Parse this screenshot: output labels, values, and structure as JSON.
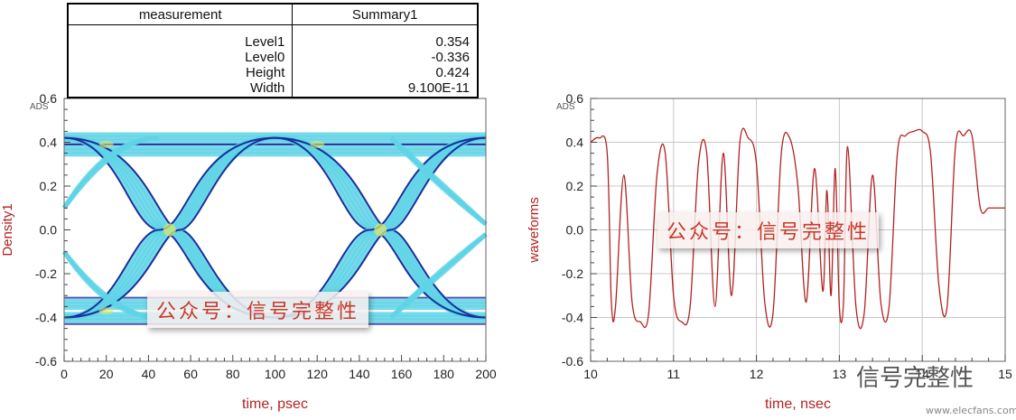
{
  "measurement_table": {
    "header": [
      "measurement",
      "Summary1"
    ],
    "rows": [
      {
        "name": "Level1",
        "value": "0.354"
      },
      {
        "name": "Level0",
        "value": "-0.336"
      },
      {
        "name": "Height",
        "value": "0.424"
      },
      {
        "name": "Width",
        "value": "9.100E-11"
      }
    ]
  },
  "watermark_text": "公众号：信号完整性",
  "site_watermark": {
    "text": "信号完整性",
    "url": "www.elecfans.com"
  },
  "colors": {
    "axis_label": "#b22222",
    "waveform": "#b22222",
    "grid": "#c8c8c8",
    "eye_light": "#5fd3e6",
    "eye_dark": "#1a2f9c",
    "eye_hot": "#d8e86b"
  },
  "chart_data": [
    {
      "type": "heatmap",
      "subtype": "eye-diagram density",
      "corner_label": "ADS",
      "xlabel": "time, psec",
      "ylabel": "Density1",
      "xlim": [
        0,
        200
      ],
      "ylim": [
        -0.6,
        0.6
      ],
      "xticks": [
        "0",
        "20",
        "40",
        "60",
        "80",
        "100",
        "120",
        "140",
        "160",
        "180",
        "200"
      ],
      "yticks": [
        "0.6",
        "0.4",
        "0.2",
        "0.0",
        "-0.2",
        "-0.4",
        "-0.6"
      ],
      "grid": false,
      "levels": {
        "high": 0.42,
        "low": -0.4
      },
      "crossings": [
        {
          "x": 50,
          "y": 0.0
        },
        {
          "x": 150,
          "y": 0.0
        }
      ]
    },
    {
      "type": "line",
      "corner_label": "ADS",
      "xlabel": "time, nsec",
      "ylabel": "waveforms",
      "xlim": [
        10,
        15
      ],
      "ylim": [
        -0.6,
        0.6
      ],
      "xticks": [
        "10",
        "11",
        "12",
        "13",
        "14",
        "15"
      ],
      "yticks": [
        "0.6",
        "0.4",
        "0.2",
        "0.0",
        "-0.2",
        "-0.4",
        "-0.6"
      ],
      "grid": true,
      "series": [
        {
          "x": [
            10.0,
            10.1,
            10.2,
            10.25,
            10.3,
            10.4,
            10.5,
            10.6,
            10.7,
            10.8,
            10.9,
            11.0,
            11.1,
            11.2,
            11.3,
            11.4,
            11.5,
            11.6,
            11.7,
            11.8,
            11.9,
            12.0,
            12.1,
            12.2,
            12.3,
            12.4,
            12.5,
            12.6,
            12.7,
            12.8,
            12.85,
            12.9,
            12.95,
            13.0,
            13.05,
            13.1,
            13.2,
            13.3,
            13.4,
            13.5,
            13.6,
            13.7,
            13.8,
            13.9,
            14.0,
            14.1,
            14.2,
            14.3,
            14.4,
            14.5,
            14.6,
            14.7,
            14.8,
            14.9,
            15.0
          ],
          "y": [
            0.4,
            0.42,
            0.35,
            -0.33,
            -0.35,
            0.25,
            -0.33,
            -0.42,
            -0.38,
            0.25,
            0.35,
            -0.3,
            -0.42,
            -0.35,
            0.3,
            0.35,
            -0.35,
            0.35,
            -0.3,
            0.4,
            0.42,
            0.3,
            -0.33,
            -0.38,
            0.35,
            0.42,
            0.2,
            -0.33,
            0.28,
            -0.28,
            0.18,
            -0.3,
            0.28,
            -0.35,
            -0.33,
            0.38,
            -0.35,
            -0.38,
            0.25,
            -0.33,
            -0.35,
            0.35,
            0.43,
            0.45,
            0.45,
            0.35,
            -0.25,
            -0.35,
            0.38,
            0.43,
            0.43,
            0.1,
            0.1,
            0.1,
            0.1
          ]
        }
      ]
    }
  ]
}
